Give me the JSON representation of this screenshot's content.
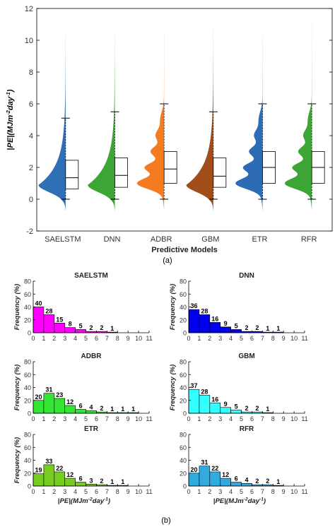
{
  "caption_a": "(a)",
  "caption_b": "(b)",
  "chart_data": [
    {
      "type": "violin-boxplot",
      "xlabel": "Predictive Models",
      "ylabel_parts": [
        "|",
        "PE",
        "|(MJm",
        "-2",
        "day",
        "-1",
        ")"
      ],
      "ylim": [
        -2,
        12
      ],
      "yticks": [
        -2,
        0,
        2,
        4,
        6,
        8,
        10,
        12
      ],
      "grid": false,
      "categories": [
        "SAELSTM",
        "DNN",
        "ADBR",
        "GBM",
        "ETR",
        "RFR"
      ],
      "colors": [
        "#2e6fb6",
        "#3da535",
        "#f47b20",
        "#a04e1a",
        "#2d6cb5",
        "#3da535"
      ],
      "box": [
        {
          "q1": 0.65,
          "median": 1.35,
          "q3": 2.45,
          "whisker_low": 0.0,
          "whisker_high": 5.1,
          "max": 10.4
        },
        {
          "q1": 0.75,
          "median": 1.5,
          "q3": 2.6,
          "whisker_low": 0.0,
          "whisker_high": 5.5,
          "max": 10.4
        },
        {
          "q1": 1.0,
          "median": 1.9,
          "q3": 3.0,
          "whisker_low": 0.0,
          "whisker_high": 6.0,
          "max": 10.6
        },
        {
          "q1": 0.75,
          "median": 1.45,
          "q3": 2.6,
          "whisker_low": 0.0,
          "whisker_high": 5.5,
          "max": 10.8
        },
        {
          "q1": 1.0,
          "median": 2.0,
          "q3": 3.0,
          "whisker_low": 0.0,
          "whisker_high": 6.0,
          "max": 10.2
        },
        {
          "q1": 1.0,
          "median": 2.0,
          "q3": 3.0,
          "whisker_low": 0.0,
          "whisker_high": 6.0,
          "max": 11.0
        }
      ]
    },
    {
      "type": "bar",
      "title": "SAELSTM",
      "color": "#ff00ff",
      "x": [
        0,
        1,
        2,
        3,
        4,
        5,
        6,
        7,
        8,
        9,
        10
      ],
      "xticks": [
        0,
        1,
        2,
        3,
        4,
        5,
        6,
        7,
        8,
        9,
        10,
        11
      ],
      "values": [
        40,
        28,
        15,
        8,
        5,
        2,
        2,
        1,
        0,
        0,
        0
      ],
      "labels": [
        "40",
        "28",
        "15",
        "8",
        "5",
        "2",
        "2",
        "1",
        "",
        "",
        ""
      ],
      "ylabel": "Frequency (%)",
      "xlabel": "",
      "ylim": [
        0,
        80
      ],
      "yticks": [
        0,
        20,
        40,
        60,
        80
      ]
    },
    {
      "type": "bar",
      "title": "DNN",
      "color": "#0000ee",
      "x": [
        0,
        1,
        2,
        3,
        4,
        5,
        6,
        7,
        8,
        9,
        10
      ],
      "xticks": [
        0,
        1,
        2,
        3,
        4,
        5,
        6,
        7,
        8,
        9,
        10,
        11
      ],
      "values": [
        36,
        28,
        16,
        9,
        5,
        2,
        2,
        1,
        1,
        0,
        0
      ],
      "labels": [
        "36",
        "28",
        "16",
        "9",
        "5",
        "2",
        "2",
        "1",
        "1",
        "",
        ""
      ],
      "ylabel": "Frequency (%)",
      "xlabel": "",
      "ylim": [
        0,
        80
      ],
      "yticks": [
        0,
        20,
        40,
        60,
        80
      ]
    },
    {
      "type": "bar",
      "title": "ADBR",
      "color": "#33e633",
      "x": [
        0,
        1,
        2,
        3,
        4,
        5,
        6,
        7,
        8,
        9,
        10
      ],
      "xticks": [
        0,
        1,
        2,
        3,
        4,
        5,
        6,
        7,
        8,
        9,
        10,
        11
      ],
      "values": [
        20,
        31,
        23,
        12,
        6,
        4,
        2,
        1,
        1,
        1,
        0
      ],
      "labels": [
        "20",
        "31",
        "23",
        "12",
        "6",
        "4",
        "2",
        "1",
        "1",
        "1",
        ""
      ],
      "ylabel": "Frequency (%)",
      "xlabel": "",
      "ylim": [
        0,
        80
      ],
      "yticks": [
        0,
        20,
        40,
        60,
        80
      ]
    },
    {
      "type": "bar",
      "title": "GBM",
      "color": "#33ffff",
      "x": [
        0,
        1,
        2,
        3,
        4,
        5,
        6,
        7,
        8,
        9,
        10
      ],
      "xticks": [
        0,
        1,
        2,
        3,
        4,
        5,
        6,
        7,
        8,
        9,
        10,
        11
      ],
      "values": [
        37,
        28,
        16,
        9,
        5,
        2,
        2,
        1,
        0,
        0,
        0
      ],
      "labels": [
        "37",
        "28",
        "16",
        "9",
        "5",
        "2",
        "2",
        "1",
        "",
        "",
        ""
      ],
      "ylabel": "Frequency (%)",
      "xlabel": "",
      "ylim": [
        0,
        80
      ],
      "yticks": [
        0,
        20,
        40,
        60,
        80
      ]
    },
    {
      "type": "bar",
      "title": "ETR",
      "color": "#77cc22",
      "x": [
        0,
        1,
        2,
        3,
        4,
        5,
        6,
        7,
        8,
        9,
        10
      ],
      "xticks": [
        0,
        1,
        2,
        3,
        4,
        5,
        6,
        7,
        8,
        9,
        10,
        11
      ],
      "values": [
        19,
        33,
        22,
        12,
        6,
        3,
        2,
        1,
        1,
        0,
        0
      ],
      "labels": [
        "19",
        "33",
        "22",
        "12",
        "6",
        "3",
        "2",
        "1",
        "1",
        "",
        ""
      ],
      "ylabel": "Frequency (%)",
      "xlabel_parts": [
        "|",
        "PE",
        "|(MJm",
        "-2",
        "day",
        "-1",
        ")"
      ],
      "ylim": [
        0,
        80
      ],
      "yticks": [
        0,
        20,
        40,
        60,
        80
      ]
    },
    {
      "type": "bar",
      "title": "RFR",
      "color": "#33aadd",
      "x": [
        0,
        1,
        2,
        3,
        4,
        5,
        6,
        7,
        8,
        9,
        10
      ],
      "xticks": [
        0,
        1,
        2,
        3,
        4,
        5,
        6,
        7,
        8,
        9,
        10,
        11
      ],
      "values": [
        20,
        31,
        22,
        12,
        6,
        4,
        2,
        2,
        1,
        0,
        0
      ],
      "labels": [
        "20",
        "31",
        "22",
        "12",
        "6",
        "4",
        "2",
        "2",
        "1",
        "",
        ""
      ],
      "ylabel": "",
      "xlabel_parts": [
        "|",
        "PE",
        "|(MJm",
        "-2",
        "day",
        "-1",
        ")"
      ],
      "ylim": [
        0,
        80
      ],
      "yticks": [
        0,
        20,
        40,
        60,
        80
      ]
    }
  ]
}
